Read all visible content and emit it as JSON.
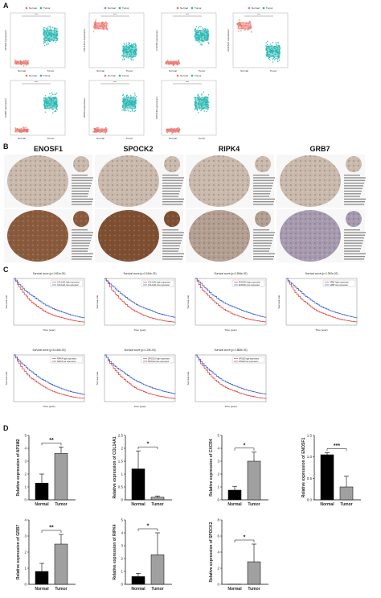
{
  "panels": {
    "a": "A",
    "b": "B",
    "c": "C",
    "d": "D"
  },
  "panel_a": {
    "legend": [
      "Normal",
      "Tumor"
    ],
    "colors": {
      "normal": "#e8726b",
      "tumor": "#1fb5b0",
      "box_normal": "#f4b6b2",
      "box_tumor": "#9adad7"
    },
    "significance": "***",
    "plots": [
      {
        "ylabel": "AP1M2 expression",
        "normal_high": false
      },
      {
        "ylabel": "COL14A1 expression",
        "normal_high": true
      },
      {
        "ylabel": "CXCR4 expression",
        "normal_high": false
      },
      {
        "ylabel": "ENOSF1 expression",
        "normal_high": true
      },
      {
        "ylabel": "GRB7 expression",
        "normal_high": false
      },
      {
        "ylabel": "RIPK4 expression",
        "normal_high": false
      },
      {
        "ylabel": "SPOCK2 expression",
        "normal_high": false
      }
    ],
    "xcats": [
      "Normal",
      "Tumor"
    ]
  },
  "panel_b": {
    "genes": [
      "ENOSF1",
      "SPOCK2",
      "RIPK4",
      "GRB7"
    ],
    "tissue_colors": {
      "normal": "#c9b9ad",
      "tumor_enosf1": "#8a5a3c",
      "tumor_spock2": "#7e4e30",
      "tumor_ripk4": "#b39e92",
      "tumor_grb7": "#a59ab0"
    }
  },
  "panel_c": {
    "xlabel": "Time (year)",
    "ylabel": "Survival rate",
    "colors": {
      "high": "#e0322c",
      "low": "#2a4fd6"
    },
    "plots": [
      {
        "title": "Survival curve (p=1.811e-02)",
        "high": "COL14A1 high expression",
        "low": "COL14A1 low expression"
      },
      {
        "title": "Survival curve (p=3.164e-02)",
        "high": "COL14A1 high expression",
        "low": "COL14A1 low expression"
      },
      {
        "title": "Survival curve (p=2.694e-02)",
        "high": "ENOSF1 high expression",
        "low": "ENOSF1 low expression"
      },
      {
        "title": "Survival curve (p=1.352e-02)",
        "high": "GRB7 high expression",
        "low": "GRB7 low expression"
      },
      {
        "title": "Survival curve (p=6.416e-03)",
        "high": "RIPK4 high expression",
        "low": "RIPK4 low expression"
      },
      {
        "title": "Survival curve (p=1.23e-03)",
        "high": "SPOCK2 high expression",
        "low": "SPOCK2 low expression"
      },
      {
        "title": "Survival curve (p=1.883e-03)",
        "high": "AP1M2 high expression",
        "low": "AP1M2 low expression"
      }
    ]
  },
  "chart_data": [
    {
      "type": "bar",
      "gene": "AP1M2",
      "ylabel": "Relative expression of AP1M2",
      "categories": [
        "Normal",
        "Tumor"
      ],
      "values": [
        1.3,
        3.6
      ],
      "errors": [
        0.7,
        0.5
      ],
      "ylim": [
        0,
        5
      ],
      "yticks": [
        0,
        1,
        2,
        3,
        4,
        5
      ],
      "significance": "**"
    },
    {
      "type": "bar",
      "gene": "COL14A1",
      "ylabel": "Relative expression of COL14A1",
      "categories": [
        "Normal",
        "Tumor"
      ],
      "values": [
        1.2,
        0.1
      ],
      "errors": [
        0.7,
        0.05
      ],
      "ylim": [
        0,
        2.5
      ],
      "yticks": [
        0.0,
        0.5,
        1.0,
        1.5,
        2.0,
        2.5
      ],
      "significance": "*"
    },
    {
      "type": "bar",
      "gene": "CXCR4",
      "ylabel": "Relative expression of CXCR4",
      "categories": [
        "Normal",
        "Tumor"
      ],
      "values": [
        0.75,
        3.0
      ],
      "errors": [
        0.3,
        0.7
      ],
      "ylim": [
        0,
        5
      ],
      "yticks": [
        0,
        1,
        2,
        3,
        4,
        5
      ],
      "significance": "*"
    },
    {
      "type": "bar",
      "gene": "ENOSF1",
      "ylabel": "Relative expression of ENOSF1",
      "categories": [
        "Normal",
        "Tumor"
      ],
      "values": [
        1.05,
        0.3
      ],
      "errors": [
        0.05,
        0.25
      ],
      "ylim": [
        0,
        1.5
      ],
      "yticks": [
        0.0,
        0.5,
        1.0,
        1.5
      ],
      "significance": "***"
    },
    {
      "type": "bar",
      "gene": "GRB7",
      "ylabel": "Relative expression of GRB7",
      "categories": [
        "Normal",
        "Tumor"
      ],
      "values": [
        0.8,
        2.5
      ],
      "errors": [
        0.5,
        0.6
      ],
      "ylim": [
        0,
        4
      ],
      "yticks": [
        0,
        1,
        2,
        3,
        4
      ],
      "significance": "**"
    },
    {
      "type": "bar",
      "gene": "RIPK4",
      "ylabel": "Relative expression of RIPK4",
      "categories": [
        "Normal",
        "Tumor"
      ],
      "values": [
        0.6,
        2.3
      ],
      "errors": [
        0.25,
        1.7
      ],
      "ylim": [
        0,
        5
      ],
      "yticks": [
        0,
        1,
        2,
        3,
        4,
        5
      ],
      "significance": "*"
    },
    {
      "type": "bar",
      "gene": "SPOCK2",
      "ylabel": "Relative expression of SPOCK2",
      "categories": [
        "Normal",
        "Tumor"
      ],
      "values": [
        0.02,
        2.8
      ],
      "errors": [
        0.0,
        2.2
      ],
      "ylim": [
        0,
        8
      ],
      "yticks": [
        0,
        2,
        4,
        6,
        8
      ],
      "significance": "*"
    }
  ]
}
